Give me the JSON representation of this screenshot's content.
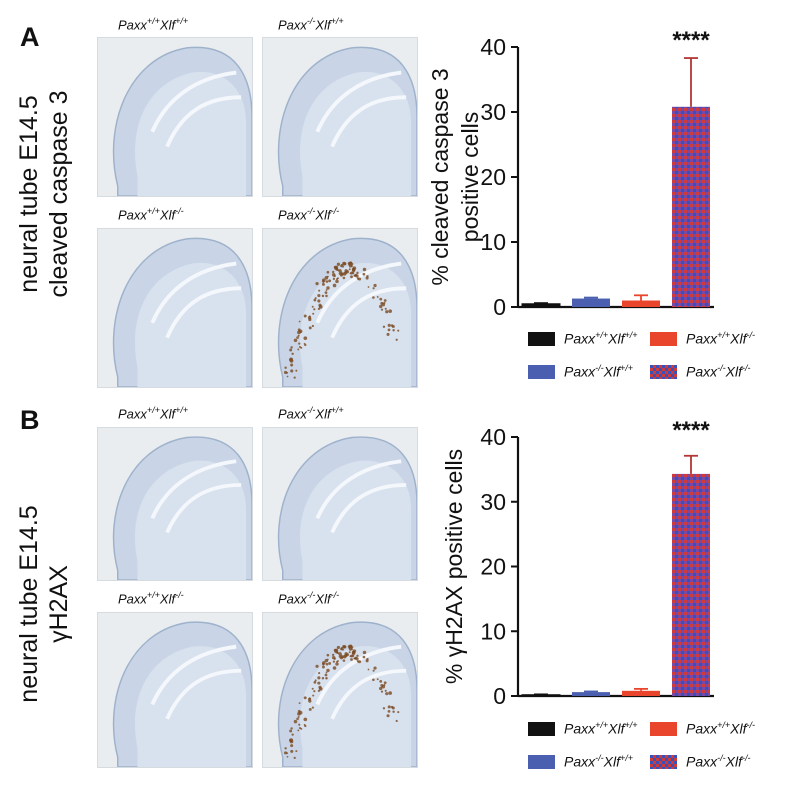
{
  "panels": [
    {
      "letter": "A",
      "side_label_line1": "neural tube E14.5",
      "side_label_line2": "cleaved caspase 3",
      "micro_labels": [
        {
          "gene1": "Paxx",
          "sup1": "+/+",
          "gene2": "Xlf",
          "sup2": "+/+"
        },
        {
          "gene1": "Paxx",
          "sup1": "-/-",
          "gene2": "Xlf",
          "sup2": "+/+"
        },
        {
          "gene1": "Paxx",
          "sup1": "+/+",
          "gene2": "Xlf",
          "sup2": "-/-"
        },
        {
          "gene1": "Paxx",
          "sup1": "-/-",
          "gene2": "Xlf",
          "sup2": "-/-"
        }
      ]
    },
    {
      "letter": "B",
      "side_label_line1": "neural tube E14.5",
      "side_label_line2": "γH2AX",
      "micro_labels": [
        {
          "gene1": "Paxx",
          "sup1": "+/+",
          "gene2": "Xlf",
          "sup2": "+/+"
        },
        {
          "gene1": "Paxx",
          "sup1": "-/-",
          "gene2": "Xlf",
          "sup2": "+/+"
        },
        {
          "gene1": "Paxx",
          "sup1": "+/+",
          "gene2": "Xlf",
          "sup2": "-/-"
        },
        {
          "gene1": "Paxx",
          "sup1": "-/-",
          "gene2": "Xlf",
          "sup2": "-/-"
        }
      ]
    }
  ],
  "colors": {
    "wt": "#111111",
    "paxx_ko": "#4a5fb0",
    "xlf_ko": "#e8452c",
    "double_ko_base": "#7a49a6",
    "double_ko_pattern_red": "#d23a3a",
    "double_ko_pattern_blue": "#3a4fb8"
  },
  "legend": [
    {
      "gene1": "Paxx",
      "sup1": "+/+",
      "gene2": "Xlf",
      "sup2": "+/+",
      "color_key": "wt"
    },
    {
      "gene1": "Paxx",
      "sup1": "+/+",
      "gene2": "Xlf",
      "sup2": "-/-",
      "color_key": "xlf_ko"
    },
    {
      "gene1": "Paxx",
      "sup1": "-/-",
      "gene2": "Xlf",
      "sup2": "+/+",
      "color_key": "paxx_ko"
    },
    {
      "gene1": "Paxx",
      "sup1": "-/-",
      "gene2": "Xlf",
      "sup2": "-/-",
      "color_key": "double_ko"
    }
  ],
  "chart_data": [
    {
      "type": "bar",
      "panel": "A",
      "title": "",
      "xlabel": "",
      "ylabel_line1": "% cleaved caspase 3",
      "ylabel_line2": "positive cells",
      "ylim": [
        0,
        40
      ],
      "yticks": [
        0,
        10,
        20,
        30,
        40
      ],
      "categories": [
        "Paxx+/+Xlf+/+",
        "Paxx-/-Xlf+/+",
        "Paxx+/+Xlf-/-",
        "Paxx-/-Xlf-/-"
      ],
      "values": [
        0.5,
        1.3,
        1.0,
        30.8
      ],
      "errors": [
        0.1,
        0.15,
        0.8,
        7.5
      ],
      "color_keys": [
        "wt",
        "paxx_ko",
        "xlf_ko",
        "double_ko"
      ],
      "significance": "****"
    },
    {
      "type": "bar",
      "panel": "B",
      "title": "",
      "xlabel": "",
      "ylabel_line1": "% γH2AX positive cells",
      "ylabel_line2": "",
      "ylim": [
        0,
        40
      ],
      "yticks": [
        0,
        10,
        20,
        30,
        40
      ],
      "categories": [
        "Paxx+/+Xlf+/+",
        "Paxx-/-Xlf+/+",
        "Paxx+/+Xlf-/-",
        "Paxx-/-Xlf-/-"
      ],
      "values": [
        0.2,
        0.6,
        0.8,
        34.3
      ],
      "errors": [
        0.05,
        0.1,
        0.3,
        2.8
      ],
      "color_keys": [
        "wt",
        "paxx_ko",
        "xlf_ko",
        "double_ko"
      ],
      "significance": "****"
    }
  ]
}
